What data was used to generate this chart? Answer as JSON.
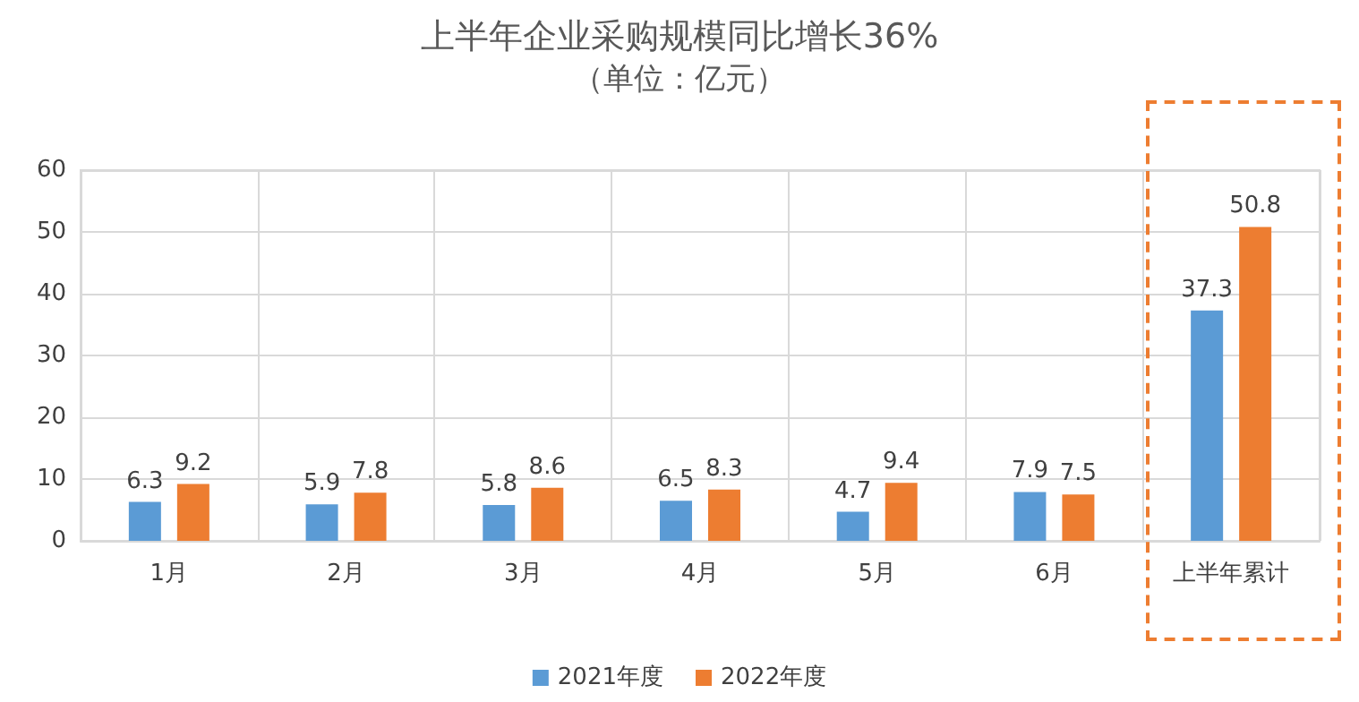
{
  "chart_data": {
    "type": "bar",
    "title": "上半年企业采购规模同比增长36%",
    "subtitle": "（单位：亿元）",
    "categories": [
      "1月",
      "2月",
      "3月",
      "4月",
      "5月",
      "6月",
      "上半年累计"
    ],
    "series": [
      {
        "name": "2021年度",
        "color": "#5b9bd5",
        "values": [
          6.3,
          5.9,
          5.8,
          6.5,
          4.7,
          7.9,
          37.3
        ]
      },
      {
        "name": "2022年度",
        "color": "#ed7d31",
        "values": [
          9.2,
          7.8,
          8.6,
          8.3,
          9.4,
          7.5,
          50.8
        ]
      }
    ],
    "ylim": [
      0,
      60
    ],
    "yticks": [
      0,
      10,
      20,
      30,
      40,
      50,
      60
    ],
    "grid": true,
    "legend": "bottom",
    "data_labels": true
  }
}
